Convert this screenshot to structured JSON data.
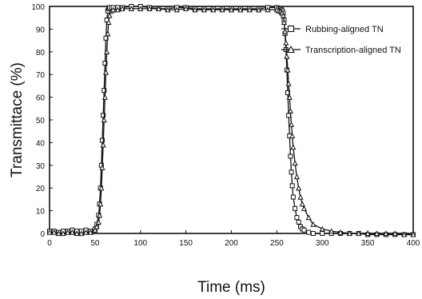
{
  "chart_data": {
    "type": "line",
    "xlabel": "Time (ms)",
    "ylabel": "Transmittace (%)",
    "xlim": [
      0,
      400
    ],
    "ylim": [
      0,
      100
    ],
    "xticks": [
      "0",
      "50",
      "100",
      "150",
      "200",
      "250",
      "300",
      "350",
      "400"
    ],
    "yticks": [
      "0",
      "10",
      "20",
      "30",
      "40",
      "50",
      "60",
      "70",
      "80",
      "90",
      "100"
    ],
    "grid": false,
    "legend_position": "top-right",
    "series": [
      {
        "name": "Rubbing-aligned TN",
        "marker": "square",
        "color": "#111111",
        "x": [
          0,
          5,
          10,
          15,
          20,
          25,
          30,
          35,
          40,
          45,
          50,
          52,
          54,
          55,
          56,
          57,
          58,
          59,
          60,
          61,
          62,
          63,
          64,
          65,
          66,
          68,
          70,
          75,
          80,
          90,
          100,
          110,
          120,
          130,
          140,
          150,
          160,
          170,
          180,
          190,
          200,
          210,
          220,
          230,
          240,
          250,
          252,
          254,
          255,
          256,
          257,
          258,
          259,
          260,
          261,
          262,
          263,
          264,
          265,
          266,
          267,
          268,
          270,
          272,
          274,
          276,
          278,
          280,
          285,
          290,
          300,
          310,
          320,
          330,
          340,
          350,
          360,
          370,
          380,
          390,
          400
        ],
        "y": [
          1,
          1,
          0.5,
          1,
          1,
          1.5,
          1,
          1,
          1.5,
          1,
          2,
          4,
          8,
          13,
          20,
          30,
          41,
          52,
          63,
          75,
          86,
          94,
          98,
          99,
          99.5,
          99.5,
          99.5,
          99.5,
          99.5,
          100,
          100,
          99.5,
          99,
          99,
          99.5,
          99.5,
          99,
          99,
          99,
          99,
          99,
          99,
          99,
          99,
          99.5,
          99.5,
          99,
          99,
          98.5,
          98,
          97,
          94,
          88,
          81,
          72,
          62,
          52,
          43,
          34,
          27,
          21,
          16,
          11,
          7,
          5,
          3,
          2,
          1.5,
          0.5,
          0,
          0,
          0,
          0,
          0,
          0,
          -0.5,
          -0.5,
          -0.5,
          -0.5,
          -0.5,
          -0.5
        ]
      },
      {
        "name": "Transcription-aligned TN",
        "marker": "triangle",
        "color": "#111111",
        "x": [
          0,
          5,
          10,
          15,
          20,
          25,
          30,
          35,
          40,
          45,
          50,
          52,
          54,
          55,
          56,
          57,
          58,
          59,
          60,
          61,
          62,
          63,
          64,
          65,
          66,
          68,
          70,
          75,
          80,
          90,
          100,
          110,
          120,
          130,
          140,
          150,
          160,
          170,
          180,
          190,
          200,
          210,
          220,
          230,
          240,
          250,
          252,
          254,
          255,
          256,
          257,
          258,
          259,
          260,
          261,
          262,
          263,
          264,
          265,
          266,
          267,
          268,
          270,
          272,
          274,
          276,
          278,
          280,
          285,
          290,
          300,
          310,
          320,
          330,
          340,
          350,
          360,
          370,
          380,
          390,
          400
        ],
        "y": [
          0.5,
          0.5,
          0,
          0,
          0.5,
          0.5,
          0,
          0,
          0.5,
          0.5,
          1.5,
          3,
          5,
          8,
          13,
          20,
          29,
          39,
          50,
          60,
          71,
          80,
          88,
          93,
          96,
          98,
          98.5,
          98.5,
          99,
          99,
          99,
          99,
          99,
          98.5,
          98.5,
          99,
          98.5,
          98.5,
          98.5,
          98.5,
          98.5,
          98.5,
          98.5,
          98.5,
          98.5,
          98.5,
          98,
          98,
          97.5,
          97,
          96,
          93,
          89,
          84,
          78,
          72,
          66,
          60,
          54,
          48,
          43,
          38,
          31,
          25,
          20,
          16,
          13,
          11,
          7,
          4,
          2,
          1,
          0.5,
          0,
          0,
          0,
          0,
          0,
          0,
          -0.5,
          -0.5
        ]
      }
    ]
  }
}
